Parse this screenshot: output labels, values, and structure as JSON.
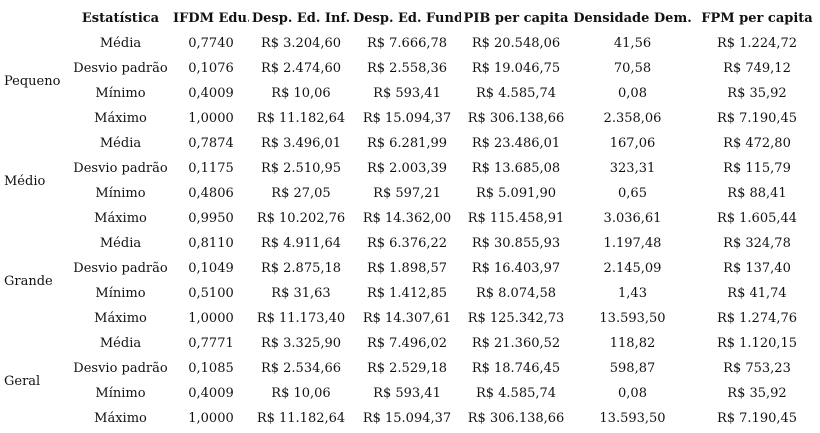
{
  "headers": [
    "",
    "Estatística",
    "IFDM Edu.",
    "Desp. Ed. Inf.",
    "Desp. Ed. Fund.",
    "PIB per capita",
    "Densidade Dem.",
    "FPM per capita"
  ],
  "groups": [
    {
      "name": "Pequeno",
      "rows": [
        {
          "stat": "Média",
          "values": [
            "0,7740",
            "R$ 3.204,60",
            "R$ 7.666,78",
            "R$ 20.548,06",
            "41,56",
            "R$ 1.224,72"
          ]
        },
        {
          "stat": "Desvio padrão",
          "values": [
            "0,1076",
            "R$ 2.474,60",
            "R$ 2.558,36",
            "R$ 19.046,75",
            "70,58",
            "R$ 749,12"
          ]
        },
        {
          "stat": "Mínimo",
          "values": [
            "0,4009",
            "R$ 10,06",
            "R$ 593,41",
            "R$ 4.585,74",
            "0,08",
            "R$ 35,92"
          ]
        },
        {
          "stat": "Máximo",
          "values": [
            "1,0000",
            "R$ 11.182,64",
            "R$ 15.094,37",
            "R$ 306.138,66",
            "2.358,06",
            "R$ 7.190,45"
          ]
        }
      ]
    },
    {
      "name": "Médio",
      "rows": [
        {
          "stat": "Média",
          "values": [
            "0,7874",
            "R$ 3.496,01",
            "R$ 6.281,99",
            "R$ 23.486,01",
            "167,06",
            "R$ 472,80"
          ]
        },
        {
          "stat": "Desvio padrão",
          "values": [
            "0,1175",
            "R$ 2.510,95",
            "R$ 2.003,39",
            "R$ 13.685,08",
            "323,31",
            "R$ 115,79"
          ]
        },
        {
          "stat": "Mínimo",
          "values": [
            "0,4806",
            "R$ 27,05",
            "R$ 597,21",
            "R$ 5.091,90",
            "0,65",
            "R$ 88,41"
          ]
        },
        {
          "stat": "Máximo",
          "values": [
            "0,9950",
            "R$ 10.202,76",
            "R$ 14.362,00",
            "R$ 115.458,91",
            "3.036,61",
            "R$ 1.605,44"
          ]
        }
      ]
    },
    {
      "name": "Grande",
      "rows": [
        {
          "stat": "Média",
          "values": [
            "0,8110",
            "R$ 4.911,64",
            "R$ 6.376,22",
            "R$ 30.855,93",
            "1.197,48",
            "R$ 324,78"
          ]
        },
        {
          "stat": "Desvio padrão",
          "values": [
            "0,1049",
            "R$ 2.875,18",
            "R$ 1.898,57",
            "R$ 16.403,97",
            "2.145,09",
            "R$ 137,40"
          ]
        },
        {
          "stat": "Mínimo",
          "values": [
            "0,5100",
            "R$ 31,63",
            "R$ 1.412,85",
            "R$ 8.074,58",
            "1,43",
            "R$ 41,74"
          ]
        },
        {
          "stat": "Máximo",
          "values": [
            "1,0000",
            "R$ 11.173,40",
            "R$ 14.307,61",
            "R$ 125.342,73",
            "13.593,50",
            "R$ 1.274,76"
          ]
        }
      ]
    },
    {
      "name": "Geral",
      "rows": [
        {
          "stat": "Média",
          "values": [
            "0,7771",
            "R$ 3.325,90",
            "R$ 7.496,02",
            "R$ 21.360,52",
            "118,82",
            "R$ 1.120,15"
          ]
        },
        {
          "stat": "Desvio padrão",
          "values": [
            "0,1085",
            "R$ 2.534,66",
            "R$ 2.529,18",
            "R$ 18.746,45",
            "598,87",
            "R$ 753,23"
          ]
        },
        {
          "stat": "Mínimo",
          "values": [
            "0,4009",
            "R$ 10,06",
            "R$ 593,41",
            "R$ 4.585,74",
            "0,08",
            "R$ 35,92"
          ]
        },
        {
          "stat": "Máximo",
          "values": [
            "1,0000",
            "R$ 11.182,64",
            "R$ 15.094,37",
            "R$ 306.138,66",
            "13.593,50",
            "R$ 7.190,45"
          ]
        }
      ]
    }
  ]
}
